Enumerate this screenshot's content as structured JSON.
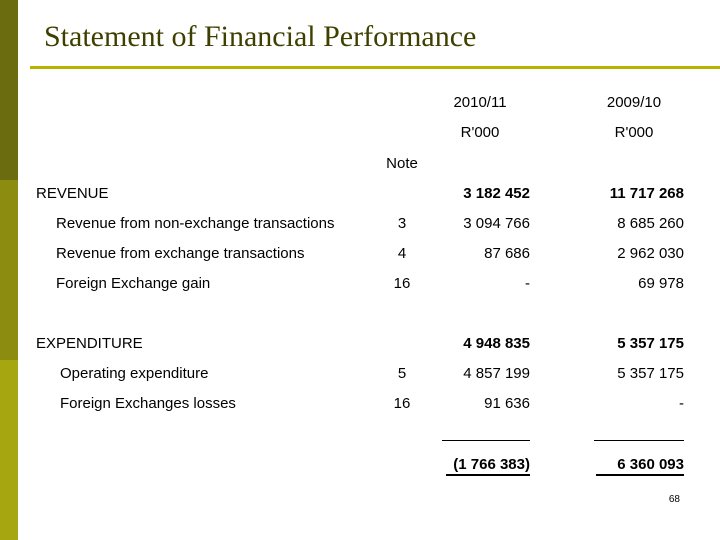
{
  "title": "Statement of Financial Performance",
  "header": {
    "year_a": "2010/11",
    "year_b": "2009/10",
    "unit_a": "R'000",
    "unit_b": "R'000",
    "note_label": "Note"
  },
  "revenue": {
    "label": "REVENUE",
    "total_a": "3 182 452",
    "total_b": "11 717 268",
    "rows": [
      {
        "label": "Revenue from non-exchange transactions",
        "note": "3",
        "a": "3 094 766",
        "b": "8 685 260"
      },
      {
        "label": "Revenue from exchange transactions",
        "note": "4",
        "a": "87 686",
        "b": "2 962 030"
      },
      {
        "label": "Foreign Exchange gain",
        "note": "16",
        "a": "-",
        "b": "69 978"
      }
    ]
  },
  "expenditure": {
    "label": "EXPENDITURE",
    "total_a": "4 948 835",
    "total_b": "5 357 175",
    "rows": [
      {
        "label": "Operating expenditure",
        "note": "5",
        "a": "4 857 199",
        "b": "5 357 175"
      },
      {
        "label": "Foreign Exchanges losses",
        "note": "16",
        "a": "91 636",
        "b": "-"
      }
    ]
  },
  "result": {
    "a": "(1 766 383)",
    "b": "6 360 093"
  },
  "page_number": "68",
  "colors": {
    "title": "#3f3f00",
    "title_rule": "#b5b500",
    "sidebar": [
      "#6b6b0f",
      "#8c8c10",
      "#a6a610"
    ]
  }
}
